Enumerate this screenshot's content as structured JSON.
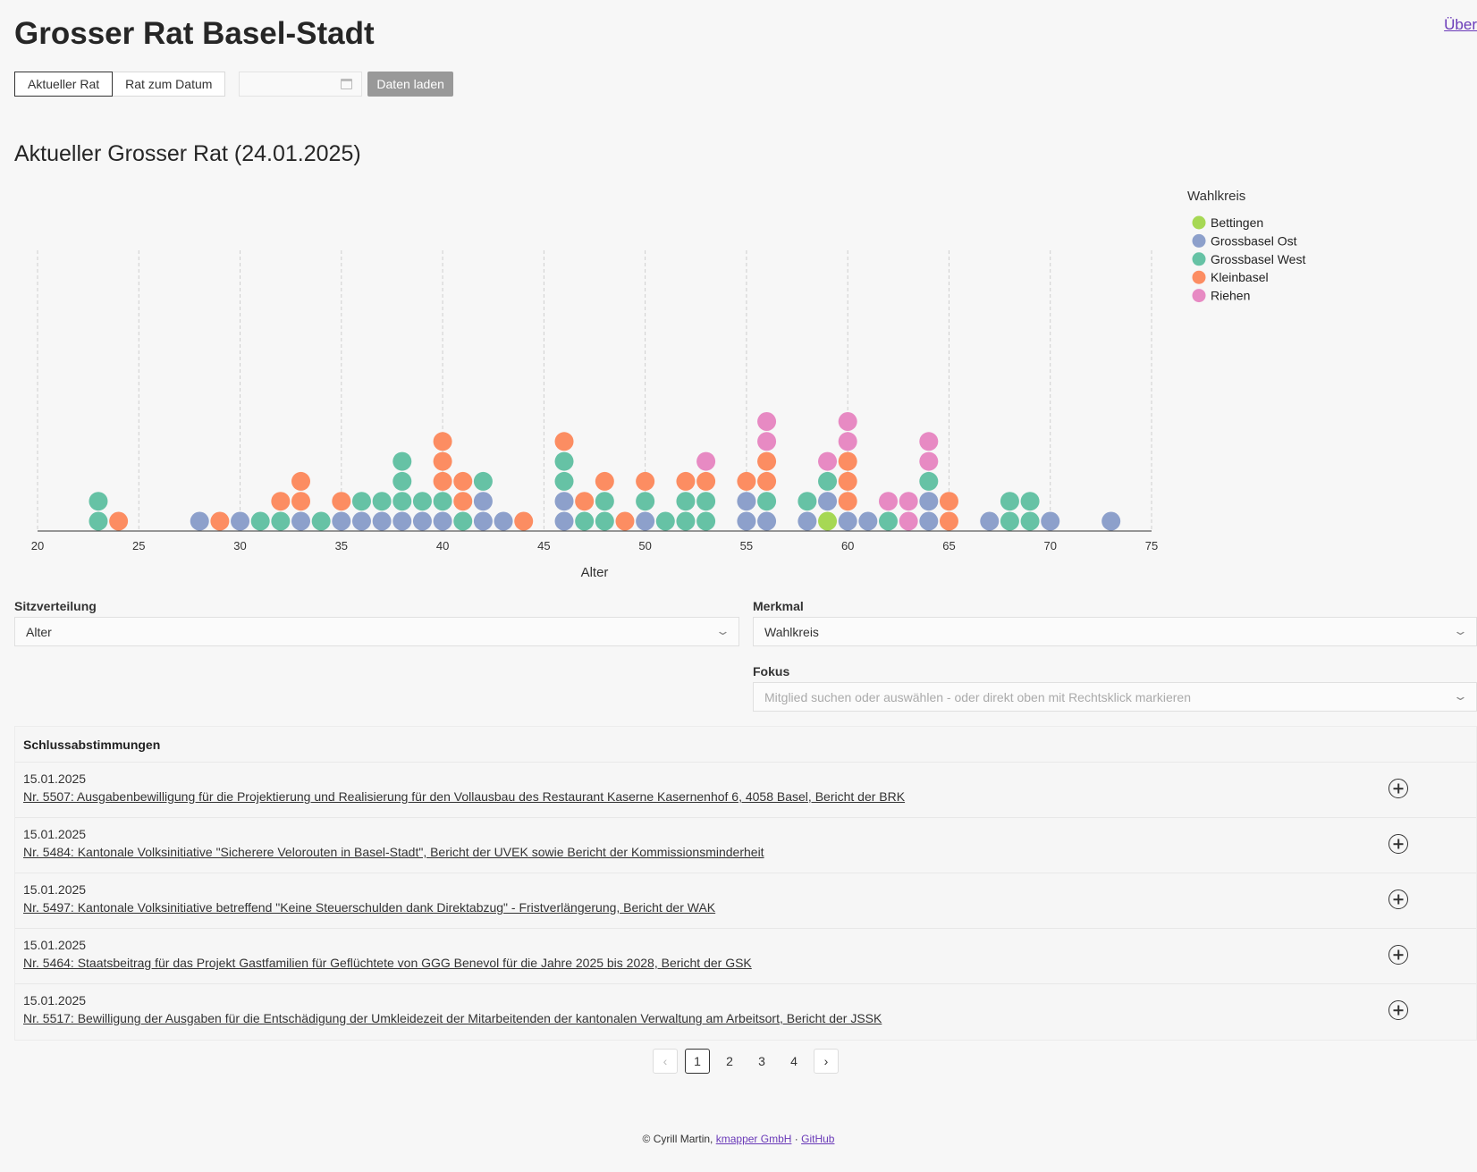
{
  "header": {
    "title": "Grosser Rat Basel-Stadt",
    "about_link": "Über"
  },
  "toolbar": {
    "tab_current": "Aktueller Rat",
    "tab_date": "Rat zum Datum",
    "date_value": "",
    "load_button": "Daten laden"
  },
  "section": {
    "title": "Aktueller Grosser Rat (24.01.2025)"
  },
  "chart_data": {
    "type": "scatter",
    "subtype": "stacked dot plot",
    "title": "",
    "xlabel": "Alter",
    "ylabel": "",
    "xlim": [
      20,
      75
    ],
    "xticks": [
      20,
      25,
      30,
      35,
      40,
      45,
      50,
      55,
      60,
      65,
      70,
      75
    ],
    "grid": "vertical dashed",
    "legend_title": "Wahlkreis",
    "legend_position": "top-right",
    "series": [
      {
        "name": "Bettingen",
        "color": "#a6d854"
      },
      {
        "name": "Grossbasel Ost",
        "color": "#8da0cb"
      },
      {
        "name": "Grossbasel West",
        "color": "#66c2a5"
      },
      {
        "name": "Kleinbasel",
        "color": "#fc8d62"
      },
      {
        "name": "Riehen",
        "color": "#e78ac3"
      }
    ],
    "stacks": [
      {
        "age": 23,
        "dots": [
          "Grossbasel West",
          "Grossbasel West"
        ]
      },
      {
        "age": 24,
        "dots": [
          "Kleinbasel"
        ]
      },
      {
        "age": 28,
        "dots": [
          "Grossbasel Ost"
        ]
      },
      {
        "age": 29,
        "dots": [
          "Kleinbasel"
        ]
      },
      {
        "age": 30,
        "dots": [
          "Grossbasel Ost"
        ]
      },
      {
        "age": 31,
        "dots": [
          "Grossbasel West"
        ]
      },
      {
        "age": 32,
        "dots": [
          "Grossbasel West",
          "Kleinbasel"
        ]
      },
      {
        "age": 33,
        "dots": [
          "Grossbasel Ost",
          "Kleinbasel",
          "Kleinbasel"
        ]
      },
      {
        "age": 34,
        "dots": [
          "Grossbasel West"
        ]
      },
      {
        "age": 35,
        "dots": [
          "Grossbasel Ost",
          "Kleinbasel"
        ]
      },
      {
        "age": 36,
        "dots": [
          "Grossbasel Ost",
          "Grossbasel West"
        ]
      },
      {
        "age": 37,
        "dots": [
          "Grossbasel Ost",
          "Grossbasel West"
        ]
      },
      {
        "age": 38,
        "dots": [
          "Grossbasel Ost",
          "Grossbasel West",
          "Grossbasel West",
          "Grossbasel West"
        ]
      },
      {
        "age": 39,
        "dots": [
          "Grossbasel Ost",
          "Grossbasel West"
        ]
      },
      {
        "age": 40,
        "dots": [
          "Grossbasel Ost",
          "Grossbasel West",
          "Kleinbasel",
          "Kleinbasel",
          "Kleinbasel"
        ]
      },
      {
        "age": 41,
        "dots": [
          "Grossbasel West",
          "Kleinbasel",
          "Kleinbasel"
        ]
      },
      {
        "age": 42,
        "dots": [
          "Grossbasel Ost",
          "Grossbasel Ost",
          "Grossbasel West"
        ]
      },
      {
        "age": 43,
        "dots": [
          "Grossbasel Ost"
        ]
      },
      {
        "age": 44,
        "dots": [
          "Kleinbasel"
        ]
      },
      {
        "age": 46,
        "dots": [
          "Grossbasel Ost",
          "Grossbasel Ost",
          "Grossbasel West",
          "Grossbasel West",
          "Kleinbasel"
        ]
      },
      {
        "age": 47,
        "dots": [
          "Grossbasel West",
          "Kleinbasel"
        ]
      },
      {
        "age": 48,
        "dots": [
          "Grossbasel West",
          "Grossbasel West",
          "Kleinbasel"
        ]
      },
      {
        "age": 49,
        "dots": [
          "Kleinbasel"
        ]
      },
      {
        "age": 50,
        "dots": [
          "Grossbasel Ost",
          "Grossbasel West",
          "Kleinbasel"
        ]
      },
      {
        "age": 51,
        "dots": [
          "Grossbasel West"
        ]
      },
      {
        "age": 52,
        "dots": [
          "Grossbasel West",
          "Grossbasel West",
          "Kleinbasel"
        ]
      },
      {
        "age": 53,
        "dots": [
          "Grossbasel West",
          "Grossbasel West",
          "Kleinbasel",
          "Riehen"
        ]
      },
      {
        "age": 55,
        "dots": [
          "Grossbasel Ost",
          "Grossbasel Ost",
          "Kleinbasel"
        ]
      },
      {
        "age": 56,
        "dots": [
          "Grossbasel Ost",
          "Grossbasel West",
          "Kleinbasel",
          "Kleinbasel",
          "Riehen",
          "Riehen"
        ]
      },
      {
        "age": 58,
        "dots": [
          "Grossbasel Ost",
          "Grossbasel West"
        ]
      },
      {
        "age": 59,
        "dots": [
          "Bettingen",
          "Grossbasel Ost",
          "Grossbasel West",
          "Riehen"
        ]
      },
      {
        "age": 60,
        "dots": [
          "Grossbasel Ost",
          "Kleinbasel",
          "Kleinbasel",
          "Kleinbasel",
          "Riehen",
          "Riehen"
        ]
      },
      {
        "age": 61,
        "dots": [
          "Grossbasel Ost"
        ]
      },
      {
        "age": 62,
        "dots": [
          "Grossbasel West",
          "Riehen"
        ]
      },
      {
        "age": 63,
        "dots": [
          "Riehen",
          "Riehen"
        ]
      },
      {
        "age": 64,
        "dots": [
          "Grossbasel Ost",
          "Grossbasel Ost",
          "Grossbasel West",
          "Riehen",
          "Riehen"
        ]
      },
      {
        "age": 65,
        "dots": [
          "Kleinbasel",
          "Kleinbasel"
        ]
      },
      {
        "age": 67,
        "dots": [
          "Grossbasel Ost"
        ]
      },
      {
        "age": 68,
        "dots": [
          "Grossbasel West",
          "Grossbasel West"
        ]
      },
      {
        "age": 69,
        "dots": [
          "Grossbasel West",
          "Grossbasel West"
        ]
      },
      {
        "age": 70,
        "dots": [
          "Grossbasel Ost"
        ]
      },
      {
        "age": 73,
        "dots": [
          "Grossbasel Ost"
        ]
      }
    ]
  },
  "controls": {
    "seat_label": "Sitzverteilung",
    "seat_value": "Alter",
    "feature_label": "Merkmal",
    "feature_value": "Wahlkreis",
    "focus_label": "Fokus",
    "focus_placeholder": "Mitglied suchen oder auswählen - oder direkt oben mit Rechtsklick markieren"
  },
  "votes": {
    "heading": "Schlussabstimmungen",
    "items": [
      {
        "date": "15.01.2025",
        "title": "Nr. 5507: Ausgabenbewilligung für die Projektierung und Realisierung für den Vollausbau des Restaurant Kaserne Kasernenhof 6, 4058 Basel, Bericht der BRK"
      },
      {
        "date": "15.01.2025",
        "title": "Nr. 5484: Kantonale Volksinitiative \"Sicherere Velorouten in Basel-Stadt\", Bericht der UVEK sowie Bericht der Kommissionsminderheit"
      },
      {
        "date": "15.01.2025",
        "title": "Nr. 5497: Kantonale Volksinitiative betreffend \"Keine Steuerschulden dank Direktabzug\" - Fristverlängerung, Bericht der WAK"
      },
      {
        "date": "15.01.2025",
        "title": "Nr. 5464: Staatsbeitrag für das Projekt Gastfamilien für Geflüchtete von GGG Benevol für die Jahre 2025 bis 2028, Bericht der GSK"
      },
      {
        "date": "15.01.2025",
        "title": "Nr. 5517: Bewilligung der Ausgaben für die Entschädigung der Umkleidezeit der Mitarbeitenden der kantonalen Verwaltung am Arbeitsort, Bericht der JSSK"
      }
    ]
  },
  "pagination": {
    "prev": "‹",
    "next": "›",
    "pages": [
      "1",
      "2",
      "3",
      "4"
    ],
    "current": "1"
  },
  "footer": {
    "copyright": "© Cyrill Martin,",
    "company": "kmapper GmbH",
    "separator": "·",
    "github": "GitHub"
  }
}
